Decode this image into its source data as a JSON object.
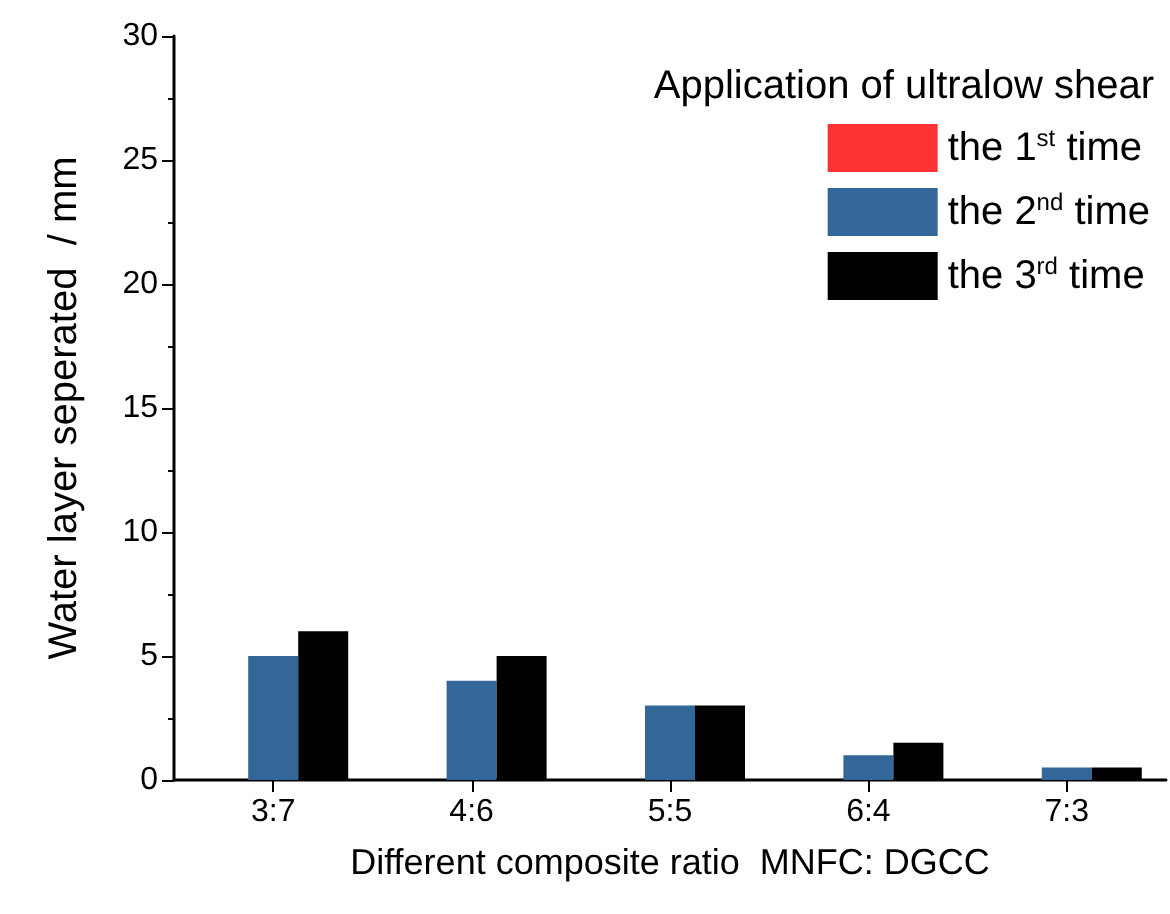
{
  "chart_data": {
    "type": "bar",
    "xlabel": "Different composite ratio  MNFC: DGCC",
    "ylabel": "Water layer seperated  / mm",
    "legend_title": "Application of ultralow shear",
    "categories": [
      "3:7",
      "4:6",
      "5:5",
      "6:4",
      "7:3"
    ],
    "series": [
      {
        "name": "the 1$^{st}$ time",
        "color": "#ff3333",
        "values": [
          0,
          0,
          0,
          0,
          0
        ]
      },
      {
        "name": "the 2$^{nd}$ time",
        "color": "#336699",
        "values": [
          5,
          4,
          3,
          1,
          0.5
        ]
      },
      {
        "name": "the 3$^{rd}$ time",
        "color": "#000000",
        "values": [
          6,
          5,
          3,
          1.5,
          0.5
        ]
      }
    ],
    "ylim": [
      0,
      30
    ],
    "yticks": [
      0,
      5,
      10,
      15,
      20,
      25,
      30
    ],
    "grid": false,
    "legend": "top right"
  }
}
